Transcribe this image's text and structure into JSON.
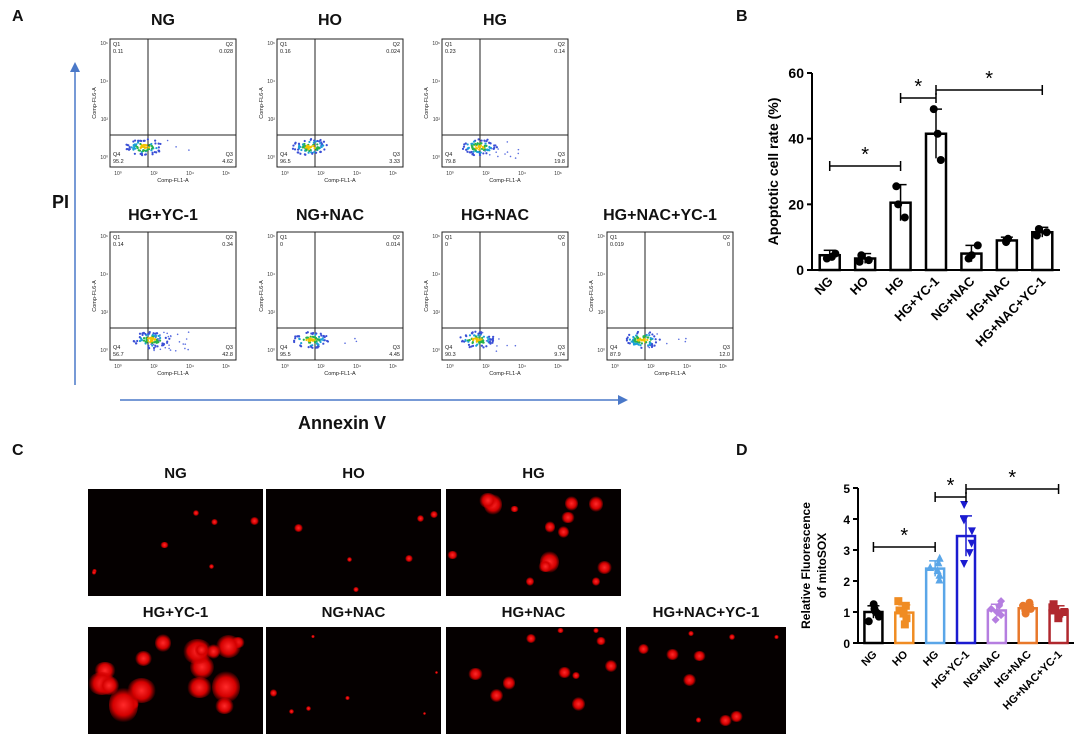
{
  "panels": {
    "a": "A",
    "b": "B",
    "c": "C",
    "d": "D"
  },
  "flow": {
    "ylabel": "PI",
    "xlabel": "Annexin V",
    "plot_xlabel": "Comp-FL1-A",
    "plot_ylabel": "Comp-FL6-A",
    "quad_labels": [
      "Q1",
      "Q2",
      "Q3",
      "Q4"
    ],
    "ticks": [
      "10⁰",
      "10²",
      "10⁴",
      "10⁶"
    ],
    "plots": [
      {
        "title": "NG",
        "q1": "0.11",
        "q2": "0.028",
        "q3": "4.62",
        "q4": "95.2"
      },
      {
        "title": "HO",
        "q1": "0.16",
        "q2": "0.024",
        "q3": "3.33",
        "q4": "96.5"
      },
      {
        "title": "HG",
        "q1": "0.23",
        "q2": "0.14",
        "q3": "19.8",
        "q4": "79.8"
      },
      {
        "title": "HG+YC-1",
        "q1": "0.14",
        "q2": "0.34",
        "q3": "42.8",
        "q4": "56.7"
      },
      {
        "title": "NG+NAC",
        "q1": "0",
        "q2": "0.014",
        "q3": "4.45",
        "q4": "95.5"
      },
      {
        "title": "HG+NAC",
        "q1": "0",
        "q2": "0",
        "q3": "9.74",
        "q4": "90.3"
      },
      {
        "title": "HG+NAC+YC-1",
        "q1": "0.019",
        "q2": "0",
        "q3": "12.0",
        "q4": "87.9"
      }
    ]
  },
  "micro": {
    "titles": [
      "NG",
      "HO",
      "HG",
      "HG+YC-1",
      "NG+NAC",
      "HG+NAC",
      "HG+NAC+YC-1"
    ],
    "colors": {
      "background": "#050000",
      "signal": "#ff2020"
    }
  },
  "chart_data": [
    {
      "type": "bar",
      "panel": "B",
      "categories": [
        "NG",
        "HO",
        "HG",
        "HG+YC-1",
        "NG+NAC",
        "HG+NAC",
        "HG+NAC+YC-1"
      ],
      "values": [
        4.5,
        3.5,
        20.5,
        41.5,
        5.0,
        9.0,
        11.5
      ],
      "errors": [
        1.5,
        1.5,
        5.5,
        7.5,
        2.5,
        1.0,
        1.5
      ],
      "points": [
        [
          4,
          5,
          3.5
        ],
        [
          2.5,
          4.5,
          3
        ],
        [
          25.5,
          20,
          16
        ],
        [
          49,
          41.5,
          33.5
        ],
        [
          7.5,
          4.5,
          3.5
        ],
        [
          9,
          8.5,
          9.5
        ],
        [
          12.5,
          11.5,
          10.5
        ]
      ],
      "ylabel": "Apoptotic cell rate (%)",
      "xlabel": "",
      "ylim": [
        0,
        60
      ],
      "yticks": [
        0,
        20,
        40,
        60
      ],
      "bar_color": "#000000",
      "significance": [
        {
          "from": "NG",
          "to": "HG",
          "label": "*"
        },
        {
          "from": "HG",
          "to": "HG+YC-1",
          "label": "*"
        },
        {
          "from": "HG+YC-1",
          "to": "HG+NAC+YC-1",
          "label": "*"
        }
      ]
    },
    {
      "type": "bar",
      "panel": "D",
      "categories": [
        "NG",
        "HO",
        "HG",
        "HG+YC-1",
        "NG+NAC",
        "HG+NAC",
        "HG+NAC+YC-1"
      ],
      "values": [
        1.0,
        0.98,
        2.4,
        3.45,
        1.05,
        1.12,
        1.05
      ],
      "errors": [
        0.2,
        0.25,
        0.25,
        0.65,
        0.2,
        0.12,
        0.15
      ],
      "points": [
        [
          0.7,
          0.85,
          0.95,
          1.0,
          1.1,
          1.25
        ],
        [
          0.6,
          0.8,
          0.95,
          1.05,
          1.2,
          1.35
        ],
        [
          2.05,
          2.2,
          2.35,
          2.45,
          2.6,
          2.75
        ],
        [
          2.55,
          2.9,
          3.2,
          3.6,
          3.95,
          4.45
        ],
        [
          0.75,
          0.9,
          1.0,
          1.1,
          1.2,
          1.35
        ],
        [
          0.95,
          1.05,
          1.1,
          1.15,
          1.2,
          1.3
        ],
        [
          0.8,
          0.95,
          1.0,
          1.05,
          1.15,
          1.25
        ]
      ],
      "ylabel_lines": [
        "Relative Fluorescence",
        "of mitoSOX"
      ],
      "xlabel": "",
      "ylim": [
        0,
        5
      ],
      "yticks": [
        0,
        1,
        2,
        3,
        4,
        5
      ],
      "colors": [
        "#000000",
        "#f08c22",
        "#5aa6e8",
        "#1b1bd0",
        "#b57ee0",
        "#e8782a",
        "#b0282e"
      ],
      "significance": [
        {
          "from": "NG",
          "to": "HG",
          "label": "*"
        },
        {
          "from": "HG",
          "to": "HG+YC-1",
          "label": "*"
        },
        {
          "from": "HG+YC-1",
          "to": "HG+NAC+YC-1",
          "label": "*"
        }
      ]
    }
  ]
}
